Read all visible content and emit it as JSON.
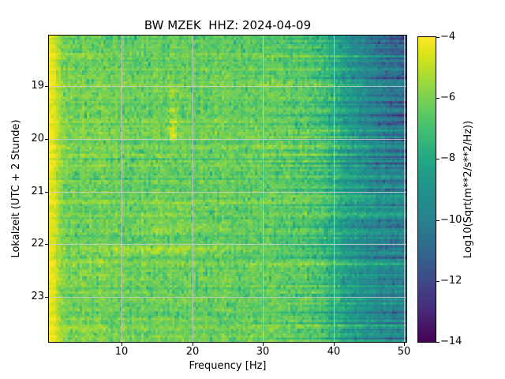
{
  "figure": {
    "background": "#ffffff"
  },
  "chart_data": {
    "type": "heatmap",
    "title": "BW MZEK  HHZ: 2024-04-09",
    "xlabel": "Frequency [Hz]",
    "ylabel": "Lokalzeit (UTC + 2 Stunde)",
    "xlim": [
      -0.3,
      50.3
    ],
    "ylim_hours": [
      18.04,
      23.85
    ],
    "xticks": [
      {
        "value": 10,
        "label": "10"
      },
      {
        "value": 20,
        "label": "20"
      },
      {
        "value": 30,
        "label": "30"
      },
      {
        "value": 40,
        "label": "40"
      },
      {
        "value": 50,
        "label": "50"
      }
    ],
    "yticks": [
      {
        "value": 19,
        "label": "19"
      },
      {
        "value": 20,
        "label": "20"
      },
      {
        "value": 21,
        "label": "21"
      },
      {
        "value": 22,
        "label": "22"
      },
      {
        "value": 23,
        "label": "23"
      }
    ],
    "grid": {
      "show": true,
      "color": "#cccccc",
      "alpha": 0.85
    },
    "colormap": {
      "name": "viridis",
      "stops": [
        [
          0.0,
          "#440154"
        ],
        [
          0.1,
          "#482878"
        ],
        [
          0.2,
          "#3e4989"
        ],
        [
          0.3,
          "#31688e"
        ],
        [
          0.4,
          "#26828e"
        ],
        [
          0.5,
          "#21918c"
        ],
        [
          0.6,
          "#22a884"
        ],
        [
          0.7,
          "#44bf70"
        ],
        [
          0.75,
          "#5ec962"
        ],
        [
          0.8,
          "#7ad151"
        ],
        [
          0.85,
          "#9bd93c"
        ],
        [
          0.9,
          "#bddf26"
        ],
        [
          0.95,
          "#dfe318"
        ],
        [
          1.0,
          "#fde725"
        ]
      ]
    },
    "colorbar": {
      "label": "Log10(Sqrt(m**2/s**2/Hz))",
      "vmin": -14,
      "vmax": -4,
      "ticks": [
        {
          "value": -4,
          "label": "−4"
        },
        {
          "value": -6,
          "label": "−6"
        },
        {
          "value": -8,
          "label": "−8"
        },
        {
          "value": -10,
          "label": "−10"
        },
        {
          "value": -12,
          "label": "−12"
        },
        {
          "value": -14,
          "label": "−14"
        }
      ]
    },
    "spectrum_model": {
      "seed": 20240409,
      "nf": 151,
      "nt": 140,
      "base_profile": [
        [
          0,
          -4.3
        ],
        [
          0.5,
          -4.5
        ],
        [
          1,
          -5.1
        ],
        [
          1.6,
          -5.7
        ],
        [
          2.5,
          -5.95
        ],
        [
          4,
          -6.0
        ],
        [
          7,
          -6.05
        ],
        [
          12,
          -6.15
        ],
        [
          20,
          -6.2
        ],
        [
          28,
          -6.25
        ],
        [
          33,
          -6.35
        ],
        [
          35,
          -6.5
        ],
        [
          37,
          -6.75
        ],
        [
          39,
          -7.1
        ],
        [
          41,
          -7.9
        ],
        [
          43,
          -8.5
        ],
        [
          45,
          -9.0
        ],
        [
          47,
          -9.35
        ],
        [
          50.3,
          -9.8
        ]
      ],
      "row_noise": 0.2,
      "col_noise": 0.09,
      "cell_noise": 0.27,
      "dark_speckle": 0.5,
      "hf_row_noise": 0.85,
      "hf_row_start": 26,
      "hf_time_darken": {
        "f_start": 40,
        "full_before_hour": 20,
        "none_after_hour": 21,
        "amount": 1.1
      },
      "edge_noise_taper_hz": 2,
      "events": [
        {
          "t": 19.08,
          "f": 17.4,
          "dt": 0.045,
          "df": 0.6,
          "boost": 1.2
        },
        {
          "t": 19.18,
          "f": 17.0,
          "dt": 0.04,
          "df": 0.5,
          "boost": 0.8
        },
        {
          "t": 19.32,
          "f": 17.5,
          "dt": 0.04,
          "df": 0.5,
          "boost": 0.9
        },
        {
          "t": 19.46,
          "f": 17.2,
          "dt": 0.05,
          "df": 0.6,
          "boost": 1.3
        },
        {
          "t": 19.57,
          "f": 17.6,
          "dt": 0.04,
          "df": 0.5,
          "boost": 1.0
        },
        {
          "t": 19.68,
          "f": 17.3,
          "dt": 0.05,
          "df": 0.6,
          "boost": 1.5
        },
        {
          "t": 19.8,
          "f": 17.1,
          "dt": 0.05,
          "df": 0.6,
          "boost": 1.4
        },
        {
          "t": 19.92,
          "f": 17.4,
          "dt": 0.06,
          "df": 0.7,
          "boost": 1.6
        },
        {
          "t": 20.02,
          "f": 17.3,
          "dt": 0.04,
          "df": 0.5,
          "boost": 1.0
        },
        {
          "t": 19.75,
          "f": 22.5,
          "dt": 0.03,
          "df": 1.5,
          "boost": 0.5
        },
        {
          "t": 21.28,
          "f": 18.0,
          "dt": 0.1,
          "df": 8.0,
          "boost": 0.45
        },
        {
          "t": 21.45,
          "f": 15.0,
          "dt": 0.05,
          "df": 5.0,
          "boost": 0.5
        },
        {
          "t": 21.67,
          "f": 20.0,
          "dt": 0.07,
          "df": 8.0,
          "boost": 0.8
        },
        {
          "t": 21.78,
          "f": 15.0,
          "dt": 0.05,
          "df": 5.0,
          "boost": 0.6
        },
        {
          "t": 22.08,
          "f": 16.0,
          "dt": 0.055,
          "df": 14.0,
          "boost": 1.25
        },
        {
          "t": 22.17,
          "f": 14.0,
          "dt": 0.05,
          "df": 9.0,
          "boost": 0.8
        },
        {
          "t": 22.3,
          "f": 6.0,
          "dt": 0.04,
          "df": 4.0,
          "boost": 0.5
        },
        {
          "t": 23.6,
          "f": 4.0,
          "dt": 0.1,
          "df": 3.5,
          "boost": 0.35
        }
      ]
    }
  }
}
